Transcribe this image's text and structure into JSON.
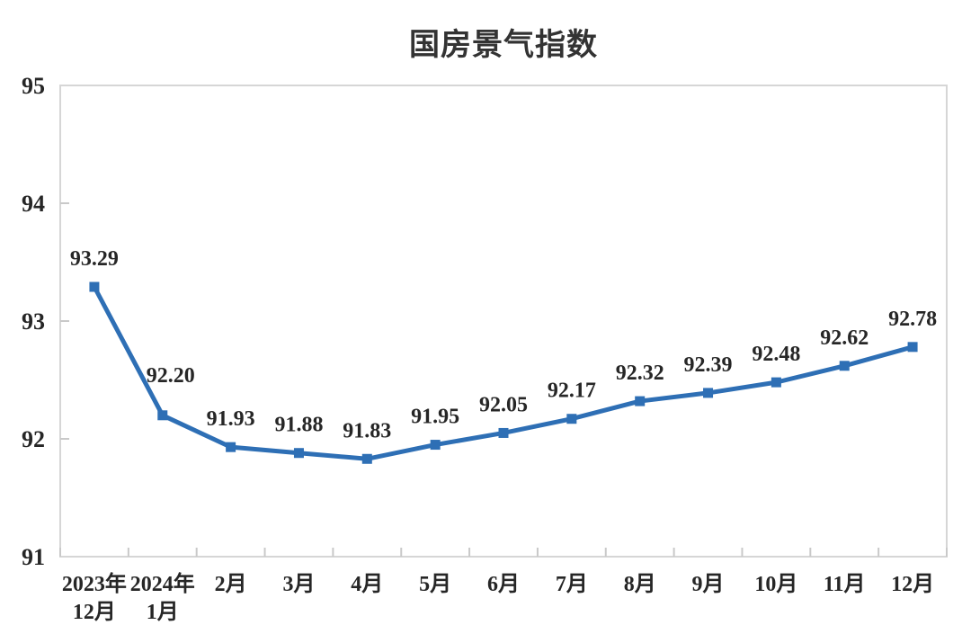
{
  "page": {
    "background": "#FFFFFF"
  },
  "chart_data": {
    "type": "line",
    "title": "国房景气指数",
    "categories": [
      [
        "2023年",
        "12月"
      ],
      [
        "2024年",
        "1月"
      ],
      [
        "2月"
      ],
      [
        "3月"
      ],
      [
        "4月"
      ],
      [
        "5月"
      ],
      [
        "6月"
      ],
      [
        "7月"
      ],
      [
        "8月"
      ],
      [
        "9月"
      ],
      [
        "10月"
      ],
      [
        "11月"
      ],
      [
        "12月"
      ]
    ],
    "series": [
      {
        "name": "国房景气指数",
        "values": [
          93.29,
          92.2,
          91.93,
          91.88,
          91.83,
          91.95,
          92.05,
          92.17,
          92.32,
          92.39,
          92.48,
          92.62,
          92.78
        ],
        "value_labels": [
          "93.29",
          "92.20",
          "91.93",
          "91.88",
          "91.83",
          "91.95",
          "92.05",
          "92.17",
          "92.32",
          "92.39",
          "92.48",
          "92.62",
          "92.78"
        ]
      }
    ],
    "xlabel": "",
    "ylabel": "",
    "ylim": [
      91,
      95
    ],
    "yticks": [
      91,
      92,
      93,
      94,
      95
    ],
    "ytick_labels": [
      "91",
      "92",
      "93",
      "94",
      "95"
    ],
    "grid": false,
    "legend_position": "none",
    "marker_shape": "square",
    "colors": {
      "line": "#2E6FB5",
      "marker": "#2E6FB5",
      "plot_border": "#D6D6D6",
      "tick": "#C9C9C9",
      "axis_text": "#262626",
      "data_label_text": "#262626",
      "title_text": "#333333"
    }
  }
}
